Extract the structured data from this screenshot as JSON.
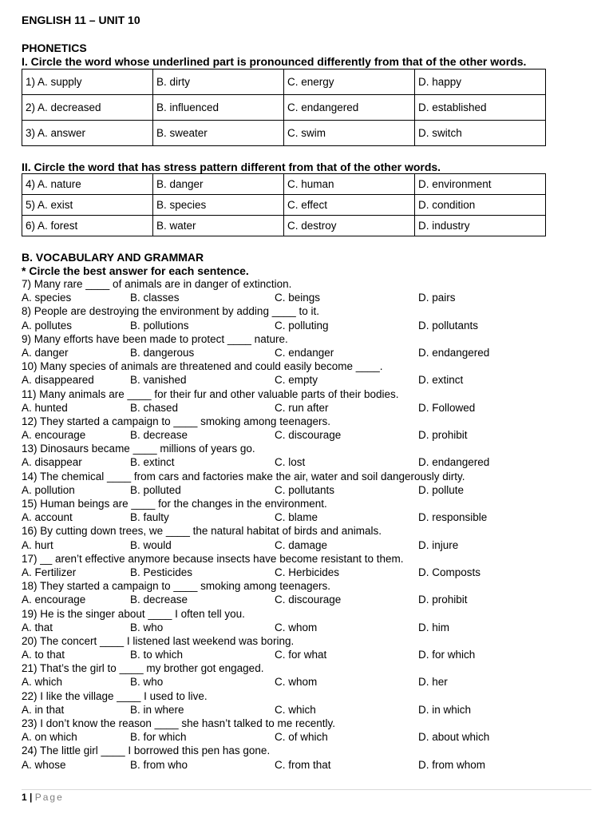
{
  "title": "ENGLISH 11 – UNIT 10",
  "phonetics": {
    "heading": "PHONETICS",
    "part1": {
      "instruction": "I. Circle the word whose underlined part is pronounced differently from that of the other words.",
      "rows": [
        [
          "1) A. supply",
          "B. dirty",
          "C. energy",
          "D. happy"
        ],
        [
          "2) A. decreased",
          "B. influenced",
          "C. endangered",
          "D. established"
        ],
        [
          "3) A. answer",
          "B. sweater",
          "C. swim",
          "D. switch"
        ]
      ]
    },
    "part2": {
      "instruction": "II. Circle the word that has stress pattern different from that of the other words.",
      "rows": [
        [
          "4) A. nature",
          "B. danger",
          "C. human",
          "D. environment"
        ],
        [
          "5) A. exist",
          "B. species",
          "C. effect",
          "D. condition"
        ],
        [
          "6) A. forest",
          "B. water",
          "C. destroy",
          "D. industry"
        ]
      ]
    }
  },
  "vocab": {
    "heading": "B. VOCABULARY AND GRAMMAR",
    "instruction": "* Circle the best answer for each sentence.",
    "questions": [
      {
        "q": "7) Many rare ____ of animals are in danger of extinction.",
        "o": [
          "A. species",
          "B. classes",
          "C. beings",
          "D. pairs"
        ]
      },
      {
        "q": "8) People are destroying the environment by adding ____ to it.",
        "o": [
          "A. pollutes",
          "B. pollutions",
          "C. polluting",
          "D. pollutants"
        ]
      },
      {
        "q": "9) Many efforts have been made to protect ____ nature.",
        "o": [
          "A. danger",
          "B. dangerous",
          "C. endanger",
          "D. endangered"
        ]
      },
      {
        "q": "10) Many species of animals are threatened and could easily become ____.",
        "o": [
          "A. disappeared",
          "B. vanished",
          "C. empty",
          "D. extinct"
        ]
      },
      {
        "q": "11) Many animals are ____ for their fur and other valuable parts of their bodies.",
        "o": [
          "A. hunted",
          "B. chased",
          "C. run after",
          "D. Followed"
        ]
      },
      {
        "q": "12) They started a campaign to ____ smoking among teenagers.",
        "o": [
          "A. encourage",
          "B. decrease",
          "C. discourage",
          "D. prohibit"
        ]
      },
      {
        "q": "13) Dinosaurs became ____ millions of years go.",
        "o": [
          "A. disappear",
          "B. extinct",
          "C. lost",
          "D. endangered"
        ]
      },
      {
        "q": "14) The chemical ____ from cars and factories make the air, water and soil dangerously dirty.",
        "o": [
          "A. pollution",
          "B. polluted",
          "C. pollutants",
          "D. pollute"
        ]
      },
      {
        "q": "15) Human beings are ____ for the changes in the environment.",
        "o": [
          "A. account",
          "B. faulty",
          "C. blame",
          "D. responsible"
        ]
      },
      {
        "q": "16) By cutting down trees, we ____ the natural habitat of birds and animals.",
        "o": [
          "A. hurt",
          "B. would",
          "C. damage",
          "D. injure"
        ]
      },
      {
        "q": "17) __ aren’t effective anymore because insects have become resistant to them.",
        "o": [
          "A. Fertilizer",
          "B. Pesticides",
          "C. Herbicides",
          "D. Composts"
        ]
      },
      {
        "q": "18) They started a campaign to ____ smoking among teenagers.",
        "o": [
          "A. encourage",
          "B. decrease",
          "C. discourage",
          "D. prohibit"
        ]
      },
      {
        "q": "19) He is the singer about ____ I often tell you.",
        "o": [
          "A. that",
          "B. who",
          "C. whom",
          "D. him"
        ]
      },
      {
        "q": "20) The concert ____ I listened last weekend was boring.",
        "o": [
          "A. to that",
          "B. to which",
          "C. for what",
          "D. for which"
        ]
      },
      {
        "q": "21) That’s the girl to ____ my brother got engaged.",
        "o": [
          "A. which",
          "B. who",
          "C. whom",
          "D. her"
        ]
      },
      {
        "q": "22) I like the village ____ I used to live.",
        "o": [
          "A. in that",
          "B. in where",
          "C. which",
          "D. in which"
        ]
      },
      {
        "q": "23) I don’t know the reason ____ she hasn’t talked to me recently.",
        "o": [
          "A. on which",
          "B. for which",
          "C. of which",
          "D. about which"
        ]
      },
      {
        "q": "24) The little girl ____ I borrowed this pen has gone.",
        "o": [
          "A. whose",
          "B. from who",
          "C. from that",
          "D. from whom"
        ]
      }
    ]
  },
  "footer": {
    "page_number": "1",
    "separator": "|",
    "page_label": "Page"
  }
}
